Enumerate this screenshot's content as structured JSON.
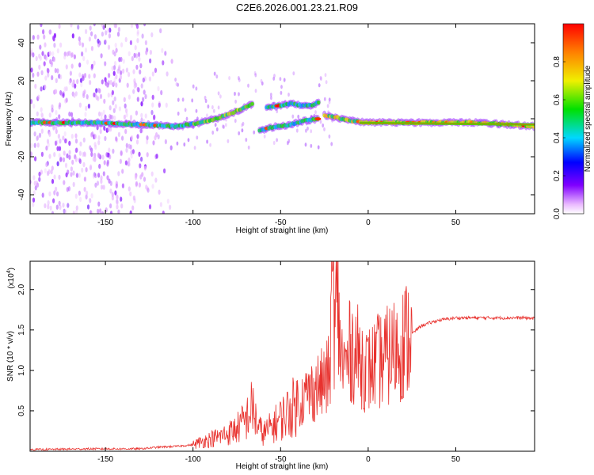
{
  "title": "C2E6.2026.001.23.21.R09",
  "chart_data": [
    {
      "type": "heatmap",
      "title": "C2E6.2026.001.23.21.R09",
      "xlabel": "Height of straight line (km)",
      "ylabel": "Frequency (Hz)",
      "xlim": [
        -193,
        95
      ],
      "ylim": [
        -50,
        50
      ],
      "xticks": [
        -150,
        -100,
        -50,
        0,
        50
      ],
      "yticks": [
        -40,
        -20,
        0,
        20,
        40
      ],
      "colorbar": {
        "label": "Normalized spectral amplitude",
        "ticks": [
          0.0,
          0.2,
          0.4,
          0.6,
          0.8
        ],
        "tick_labels": [
          "0.0",
          "0.2",
          "0.4",
          "0.6",
          "0.8"
        ],
        "range": [
          0,
          1
        ]
      },
      "ridges": [
        {
          "name": "main",
          "x": [
            -193,
            -160,
            -130,
            -110,
            -95,
            -80,
            -70,
            -66
          ],
          "y": [
            -2,
            -2,
            -3,
            -4,
            -2,
            2,
            6,
            8
          ]
        },
        {
          "name": "upper branch",
          "x": [
            -58,
            -50,
            -44,
            -38,
            -32,
            -28
          ],
          "y": [
            6,
            7,
            8,
            7,
            7,
            9
          ]
        },
        {
          "name": "lower branch",
          "x": [
            -62,
            -52,
            -44,
            -36,
            -28
          ],
          "y": [
            -6,
            -4,
            -3,
            -1,
            0
          ]
        },
        {
          "name": "tail",
          "x": [
            -25,
            -10,
            0,
            20,
            40,
            60,
            80,
            95
          ],
          "y": [
            2,
            -1,
            -2,
            -2,
            -2,
            -2,
            -3,
            -4
          ]
        }
      ]
    },
    {
      "type": "line",
      "xlabel": "Height of straight line (km)",
      "ylabel": "SNR (10 * v/v)",
      "scale_label": "(x10",
      "scale_exp": "4",
      "scale_close": ")",
      "xlim": [
        -193,
        95
      ],
      "ylim": [
        0,
        2.35
      ],
      "xticks": [
        -150,
        -100,
        -50,
        0,
        50
      ],
      "yticks": [
        0.5,
        1.0,
        1.5,
        2.0
      ],
      "ytick_labels": [
        "0.5",
        "1.0",
        "1.5",
        "2.0"
      ],
      "series": [
        {
          "name": "SNR",
          "color": "#e8322e",
          "x": [
            -193,
            -160,
            -130,
            -120,
            -110,
            -100,
            -95,
            -90,
            -85,
            -80,
            -75,
            -70,
            -66,
            -63,
            -60,
            -55,
            -50,
            -45,
            -40,
            -35,
            -30,
            -25,
            -22,
            -20,
            -19,
            -18,
            -15,
            -12,
            -10,
            -5,
            0,
            5,
            10,
            15,
            20,
            25,
            30,
            40,
            50,
            60,
            70,
            80,
            90,
            95
          ],
          "y": [
            0.02,
            0.03,
            0.03,
            0.05,
            0.06,
            0.08,
            0.12,
            0.15,
            0.18,
            0.22,
            0.28,
            0.38,
            0.55,
            0.3,
            0.22,
            0.3,
            0.4,
            0.5,
            0.6,
            0.7,
            0.78,
            0.85,
            0.95,
            2.3,
            1.3,
            1.9,
            1.1,
            1.05,
            1.3,
            1.15,
            1.0,
            1.1,
            1.15,
            1.25,
            1.35,
            1.45,
            1.55,
            1.62,
            1.65,
            1.65,
            1.65,
            1.65,
            1.65,
            1.64
          ]
        }
      ]
    }
  ]
}
